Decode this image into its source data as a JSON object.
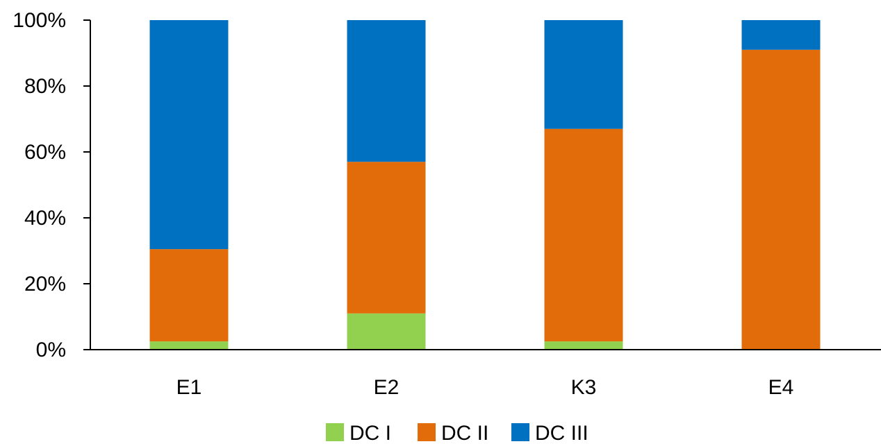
{
  "chart_data": {
    "type": "bar",
    "stacked": true,
    "categories": [
      "E1",
      "E2",
      "K3",
      "E4"
    ],
    "series": [
      {
        "name": "DC I",
        "color": "#92d050",
        "values": [
          2.5,
          11,
          2.5,
          0
        ]
      },
      {
        "name": "DC II",
        "color": "#e36c0a",
        "values": [
          28,
          46,
          64.5,
          91
        ]
      },
      {
        "name": "DC III",
        "color": "#0070c0",
        "values": [
          69.5,
          43,
          33,
          9
        ]
      }
    ],
    "yticks": [
      "0%",
      "20%",
      "40%",
      "60%",
      "80%",
      "100%"
    ],
    "ylim": [
      0,
      100
    ],
    "title": "",
    "xlabel": "",
    "ylabel": "",
    "grid": false,
    "legend_position": "bottom"
  }
}
